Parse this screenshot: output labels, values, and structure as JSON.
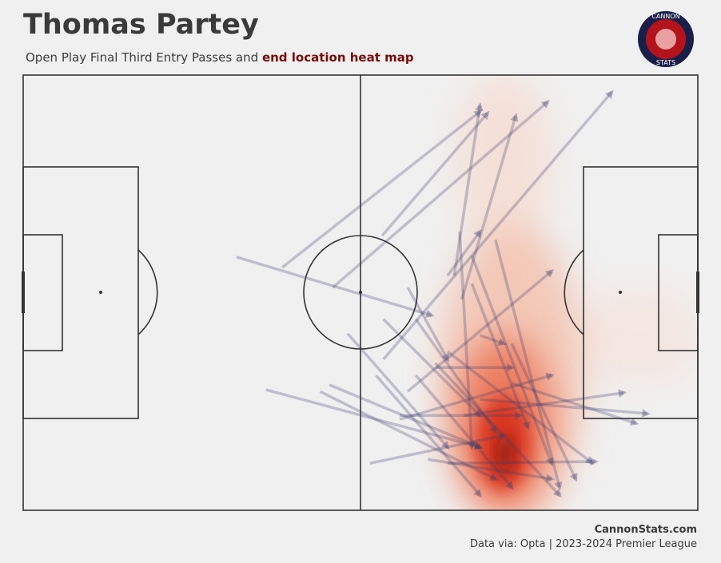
{
  "chart_data": {
    "type": "pass-map",
    "title": "Thomas Partey",
    "subtitle": "Open Play Final Third Entry Passes and",
    "subtitle_highlight": "end location heat map",
    "logo_top": "CANNON",
    "logo_bottom": "STATS",
    "source": "CannonStats.com",
    "note": "Data via: Opta | 2023-2024 Premier League",
    "color": "#3c3c6e",
    "xlim": [
      0,
      100
    ],
    "ylim": [
      0,
      100
    ],
    "passes": [
      {
        "x": 31.6,
        "y": 58.2,
        "end_x": 60.5,
        "end_y": 44.8
      },
      {
        "x": 38.4,
        "y": 55.8,
        "end_x": 67.7,
        "end_y": 91.6
      },
      {
        "x": 45.9,
        "y": 51.2,
        "end_x": 77.7,
        "end_y": 93.8
      },
      {
        "x": 53.2,
        "y": 63.1,
        "end_x": 68.8,
        "end_y": 91.2
      },
      {
        "x": 53.4,
        "y": 34.7,
        "end_x": 87.2,
        "end_y": 96.0
      },
      {
        "x": 63.9,
        "y": 53.9,
        "end_x": 67.7,
        "end_y": 93.0
      },
      {
        "x": 65.0,
        "y": 48.4,
        "end_x": 73.0,
        "end_y": 90.6
      },
      {
        "x": 36.0,
        "y": 27.7,
        "end_x": 67.7,
        "end_y": 14.5
      },
      {
        "x": 44.0,
        "y": 27.3,
        "end_x": 70.0,
        "end_y": 7.2
      },
      {
        "x": 45.4,
        "y": 28.8,
        "end_x": 67.7,
        "end_y": 14.5
      },
      {
        "x": 48.1,
        "y": 40.6,
        "end_x": 62.9,
        "end_y": 14.5
      },
      {
        "x": 51.4,
        "y": 10.8,
        "end_x": 71.2,
        "end_y": 17.2
      },
      {
        "x": 55.8,
        "y": 20.9,
        "end_x": 78.3,
        "end_y": 31.0
      },
      {
        "x": 58.2,
        "y": 43.9,
        "end_x": 70.0,
        "end_y": 18.2
      },
      {
        "x": 61.1,
        "y": 33.8,
        "end_x": 79.5,
        "end_y": 3.5
      },
      {
        "x": 62.9,
        "y": 36.5,
        "end_x": 84.2,
        "end_y": 11.0
      },
      {
        "x": 66.5,
        "y": 58.5,
        "end_x": 78.3,
        "end_y": 10.8
      },
      {
        "x": 70.0,
        "y": 62.2,
        "end_x": 79.5,
        "end_y": 5.3
      },
      {
        "x": 66.5,
        "y": 52.1,
        "end_x": 74.8,
        "end_y": 19.1
      },
      {
        "x": 57.0,
        "y": 27.3,
        "end_x": 78.3,
        "end_y": 54.9
      },
      {
        "x": 65.3,
        "y": 21.8,
        "end_x": 89.0,
        "end_y": 27.0
      },
      {
        "x": 67.7,
        "y": 25.5,
        "end_x": 92.5,
        "end_y": 22.2
      },
      {
        "x": 62.9,
        "y": 10.8,
        "end_x": 84.8,
        "end_y": 11.2
      },
      {
        "x": 72.4,
        "y": 29.2,
        "end_x": 90.8,
        "end_y": 20.0
      },
      {
        "x": 52.3,
        "y": 31.0,
        "end_x": 67.7,
        "end_y": 3.5
      },
      {
        "x": 58.2,
        "y": 31.0,
        "end_x": 72.4,
        "end_y": 5.3
      },
      {
        "x": 64.7,
        "y": 64.0,
        "end_x": 66.5,
        "end_y": 14.5
      },
      {
        "x": 61.1,
        "y": 32.8,
        "end_x": 72.4,
        "end_y": 32.8
      },
      {
        "x": 67.7,
        "y": 40.2,
        "end_x": 71.2,
        "end_y": 38.3
      },
      {
        "x": 53.4,
        "y": 43.9,
        "end_x": 67.7,
        "end_y": 21.8
      },
      {
        "x": 57.0,
        "y": 51.2,
        "end_x": 62.9,
        "end_y": 34.7
      },
      {
        "x": 72.4,
        "y": 38.3,
        "end_x": 81.9,
        "end_y": 7.2
      },
      {
        "x": 62.9,
        "y": 53.9,
        "end_x": 67.7,
        "end_y": 64.0
      },
      {
        "x": 55.8,
        "y": 21.8,
        "end_x": 73.6,
        "end_y": 21.8
      },
      {
        "x": 60.0,
        "y": 11.7,
        "end_x": 78.3,
        "end_y": 7.2
      }
    ]
  }
}
